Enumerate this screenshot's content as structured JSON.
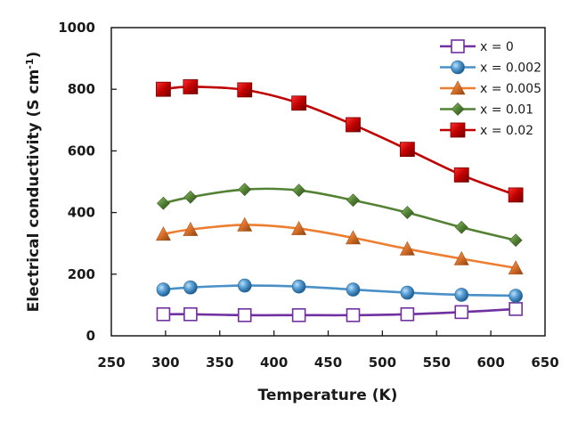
{
  "chart_data": {
    "type": "line",
    "title": "",
    "xlabel": "Temperature (K)",
    "ylabel": "Electrical conductivity (S cm",
    "ylabel_superscript": "-1",
    "ylabel_suffix": ")",
    "xlim": [
      250,
      650
    ],
    "ylim": [
      0,
      1000
    ],
    "xticks": [
      250,
      300,
      350,
      400,
      450,
      500,
      550,
      600,
      650
    ],
    "yticks": [
      0,
      200,
      400,
      600,
      800,
      1000
    ],
    "grid": false,
    "legend_position": "top-right",
    "x": [
      298,
      323,
      373,
      423,
      473,
      523,
      573,
      623
    ],
    "series": [
      {
        "name": "x = 0",
        "color": "#7030a0",
        "marker": "open-square",
        "values": [
          70,
          70,
          67,
          67,
          67,
          70,
          77,
          87
        ]
      },
      {
        "name": "x = 0.002",
        "color": "#4a90c8",
        "marker": "sphere",
        "values": [
          150,
          157,
          163,
          160,
          150,
          140,
          133,
          130
        ]
      },
      {
        "name": "x = 0.005",
        "color": "#ed7d31",
        "marker": "triangle",
        "values": [
          330,
          345,
          360,
          348,
          318,
          282,
          250,
          220
        ]
      },
      {
        "name": "x = 0.01",
        "color": "#548235",
        "marker": "diamond",
        "values": [
          430,
          450,
          475,
          472,
          440,
          400,
          352,
          310
        ]
      },
      {
        "name": "x = 0.02",
        "color": "#c00000",
        "marker": "filled-square",
        "values": [
          800,
          808,
          798,
          755,
          685,
          605,
          522,
          457
        ]
      }
    ]
  }
}
